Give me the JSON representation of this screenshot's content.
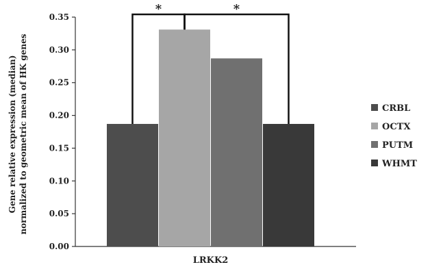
{
  "chart_data": {
    "type": "bar",
    "categories": [
      "LRKK2"
    ],
    "series": [
      {
        "name": "CRBL",
        "values": [
          0.187
        ],
        "color": "#4d4d4d"
      },
      {
        "name": "OCTX",
        "values": [
          0.331
        ],
        "color": "#a6a6a6"
      },
      {
        "name": "PUTM",
        "values": [
          0.287
        ],
        "color": "#707070"
      },
      {
        "name": "WHMT",
        "values": [
          0.187
        ],
        "color": "#393939"
      }
    ],
    "title": "",
    "xlabel": "LRKK2",
    "ylabel": [
      "Gene relative expression (median)",
      "normalized to geometric mean of HK genes"
    ],
    "ylim": [
      0,
      0.35
    ],
    "yticks": [
      "0.00",
      "0.05",
      "0.10",
      "0.15",
      "0.20",
      "0.25",
      "0.30",
      "0.35"
    ],
    "legend_position": "right",
    "grid": false,
    "significance": [
      {
        "label": "*",
        "between": [
          "CRBL",
          "OCTX"
        ]
      },
      {
        "label": "*",
        "between": [
          "OCTX",
          "WHMT"
        ]
      }
    ]
  }
}
